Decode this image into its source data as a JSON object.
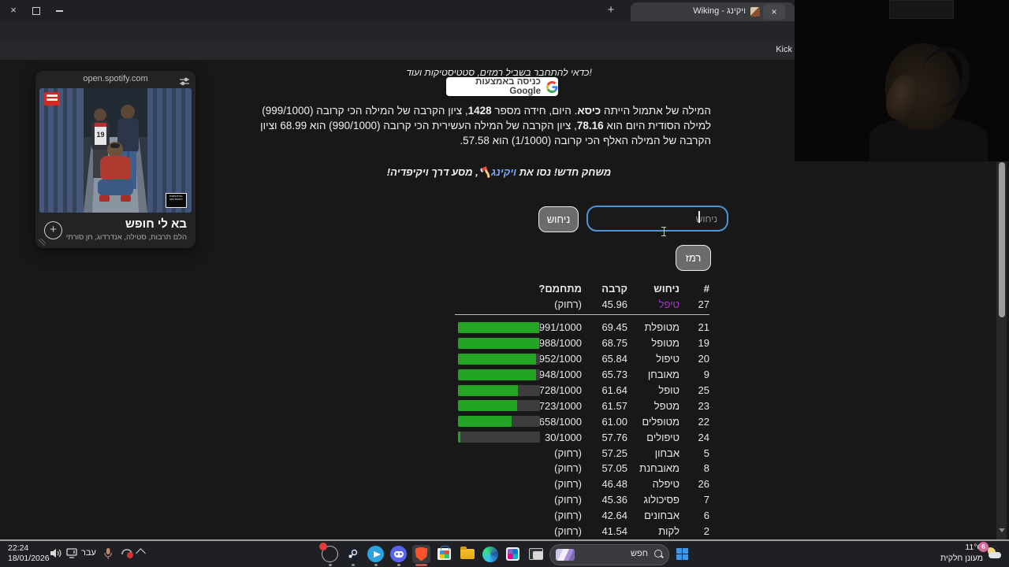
{
  "colors": {
    "accent_green": "#24a424",
    "bar_track_gray": "#3d3d3d",
    "latest_word_purple": "#a435c8",
    "link_blue": "#7aa7f7",
    "input_focus_blue": "#4f94d4",
    "brave_orange": "#fb542b",
    "badge_pink": "#d9679c"
  },
  "browser": {
    "tab_title": "Wiking - ויקינג",
    "new_tab_plus": "+",
    "tab_close": "×",
    "window_close": "×",
    "url": "semantle.ishefi.co",
    "bookmark_kick": "Kick"
  },
  "spotify": {
    "domain": "open.spotify.com",
    "track_title": "בא לי חופש",
    "artists": "הלם תרבות, סטילה, אנדרדוג, חן סורתי",
    "advisory_line1": "PARENTAL",
    "advisory_line2": "ADVISORY",
    "advisory_line3": "EXPLICIT CONTENT",
    "jersey_number": "19",
    "add_plus": "+"
  },
  "game": {
    "login_hint": "כדאי להתחבר בשביל רמזים, סטטיסטיקות ועוד!",
    "google_login": "כניסה באמצעות Google",
    "intro_segments": [
      {
        "t": "המילה של אתמול הייתה "
      },
      {
        "t": "כיסא",
        "b": true
      },
      {
        "t": ". היום, חידה מספר "
      },
      {
        "t": "1428",
        "b": true
      },
      {
        "t": ", ציון הקרבה של המילה הכי קרובה (999/1000) למילה הסודית היום הוא "
      },
      {
        "t": "78.16",
        "b": true
      },
      {
        "t": ", ציון הקרבה של המילה העשירית הכי קרובה (990/1000) הוא 68.99 וציון הקרבה של המילה האלף הכי קרובה (1/1000) הוא 57.58."
      }
    ],
    "new_game_segments": [
      {
        "t": "משחק חדש! נסו את "
      },
      {
        "t": "ויקינג",
        "link": true
      },
      {
        "t": "🪓"
      },
      {
        "t": ", מסע דרך ויקיפדיה!"
      }
    ],
    "guess_button": "ניחוש",
    "input_placeholder": "ניחוש",
    "hint_button": "רמז",
    "table": {
      "headers": [
        "#",
        "ניחוש",
        "קרבה",
        "מתחמם?"
      ],
      "latest_row": {
        "num": "27",
        "word": "טיפל",
        "score": "45.96",
        "warm": "(רחוק)"
      },
      "rows": [
        {
          "num": "21",
          "word": "מטופלת",
          "score": "69.45",
          "warm": "991/1000",
          "bar": 991
        },
        {
          "num": "19",
          "word": "מטופל",
          "score": "68.75",
          "warm": "988/1000",
          "bar": 988
        },
        {
          "num": "20",
          "word": "טיפול",
          "score": "65.84",
          "warm": "952/1000",
          "bar": 952
        },
        {
          "num": "9",
          "word": "מאובחן",
          "score": "65.73",
          "warm": "948/1000",
          "bar": 948
        },
        {
          "num": "25",
          "word": "טופל",
          "score": "61.64",
          "warm": "728/1000",
          "bar": 728
        },
        {
          "num": "23",
          "word": "מטפל",
          "score": "61.57",
          "warm": "723/1000",
          "bar": 723
        },
        {
          "num": "22",
          "word": "מטופלים",
          "score": "61.00",
          "warm": "658/1000",
          "bar": 658
        },
        {
          "num": "24",
          "word": "טיפולים",
          "score": "57.76",
          "warm": "30/1000",
          "bar": 30
        },
        {
          "num": "5",
          "word": "אבחון",
          "score": "57.25",
          "warm": "(רחוק)",
          "bar": null
        },
        {
          "num": "8",
          "word": "מאובחנת",
          "score": "57.05",
          "warm": "(רחוק)",
          "bar": null
        },
        {
          "num": "26",
          "word": "טיפלה",
          "score": "46.48",
          "warm": "(רחוק)",
          "bar": null
        },
        {
          "num": "7",
          "word": "פסיכולוג",
          "score": "45.36",
          "warm": "(רחוק)",
          "bar": null
        },
        {
          "num": "6",
          "word": "אבחונים",
          "score": "42.64",
          "warm": "(רחוק)",
          "bar": null
        },
        {
          "num": "2",
          "word": "לקות",
          "score": "41.54",
          "warm": "(רחוק)",
          "bar": null
        }
      ]
    }
  },
  "taskbar": {
    "time": "22:24",
    "date": "18/01/2026",
    "language": "עבר",
    "search_label": "חפש",
    "weather_temp": "11°C",
    "weather_desc": "מעונן חלקית",
    "notification_badge": "6"
  },
  "icons": {
    "music_note": "♪",
    "script_f": "ƒ"
  }
}
